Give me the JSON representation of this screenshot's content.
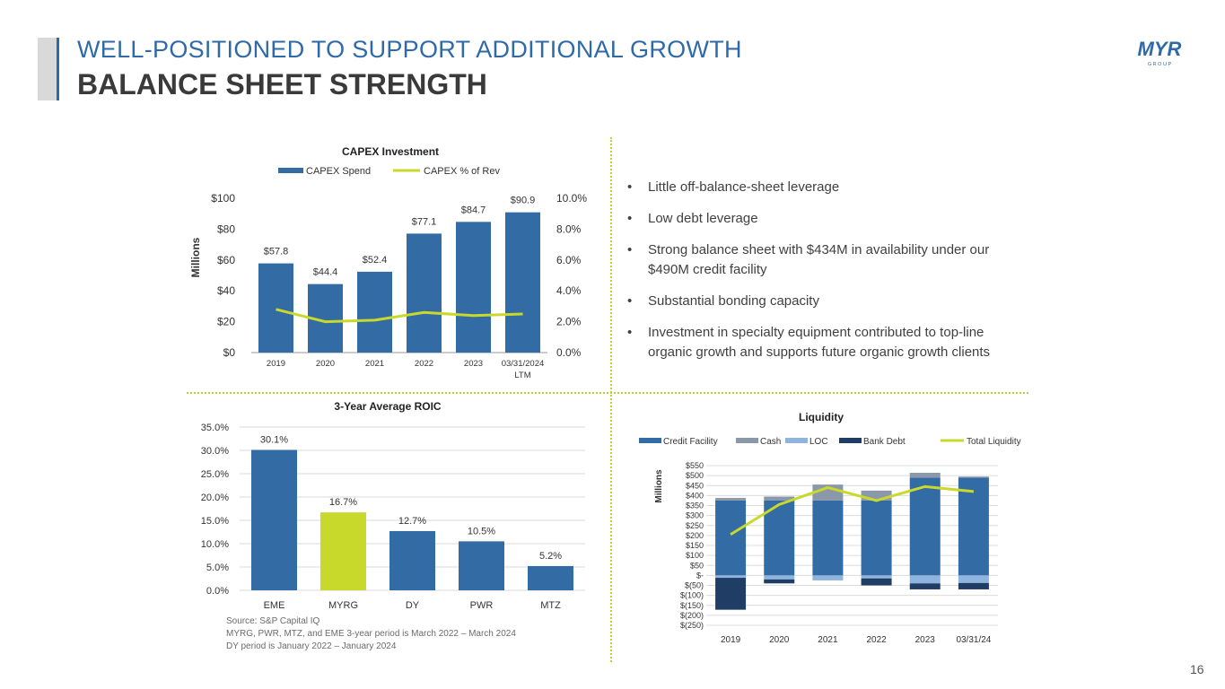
{
  "header": {
    "title": "WELL-POSITIONED TO SUPPORT ADDITIONAL GROWTH",
    "subtitle": "BALANCE SHEET STRENGTH",
    "logo_text": "MYR",
    "logo_sub": "G R O U P"
  },
  "page_number": "16",
  "colors": {
    "accent_blue": "#2f6aa8",
    "bar_blue": "#336ca5",
    "lime": "#c9d92b",
    "dark_navy": "#203d66",
    "gray_blue": "#8a98aa",
    "light_blue": "#8fb4de"
  },
  "bullets": [
    "Little off-balance-sheet leverage",
    "Low debt leverage",
    "Strong balance sheet with $434M in availability under our $490M credit facility",
    "Substantial bonding capacity",
    "Investment in specialty equipment contributed to top-line organic growth and supports future organic growth clients"
  ],
  "bullet_symbol": "•",
  "source_lines": [
    "Source: S&P Capital IQ",
    "MYRG, PWR, MTZ, and EME 3-year period is March 2022 – March 2024",
    "DY period is January 2022 – January 2024"
  ],
  "chart_data": [
    {
      "id": "capex",
      "type": "bar",
      "title": "CAPEX  Investment",
      "ylabel": "Millions",
      "categories": [
        "2019",
        "2020",
        "2021",
        "2022",
        "2023",
        "03/31/2024"
      ],
      "category_sublabels": [
        "",
        "",
        "",
        "",
        "",
        "LTM"
      ],
      "series": [
        {
          "name": "CAPEX Spend",
          "kind": "bar",
          "axis": "left",
          "values": [
            57.8,
            44.4,
            52.4,
            77.1,
            84.7,
            90.9
          ],
          "labels": [
            "$57.8",
            "$44.4",
            "$52.4",
            "$77.1",
            "$84.7",
            "$90.9"
          ]
        },
        {
          "name": "CAPEX % of Rev",
          "kind": "line",
          "axis": "right",
          "values": [
            2.8,
            2.0,
            2.1,
            2.6,
            2.4,
            2.5
          ]
        }
      ],
      "ylim": [
        0,
        100
      ],
      "yticks": [
        0,
        20,
        40,
        60,
        80,
        100
      ],
      "ytick_labels": [
        "$0",
        "$20",
        "$40",
        "$60",
        "$80",
        "$100"
      ],
      "y2lim": [
        0,
        10
      ],
      "y2ticks": [
        0,
        2,
        4,
        6,
        8,
        10
      ],
      "y2tick_labels": [
        "0.0%",
        "2.0%",
        "4.0%",
        "6.0%",
        "8.0%",
        "10.0%"
      ],
      "legend": "top",
      "grid": false
    },
    {
      "id": "roic",
      "type": "bar",
      "title": "3-Year Average ROIC",
      "categories": [
        "EME",
        "MYRG",
        "DY",
        "PWR",
        "MTZ"
      ],
      "values": [
        30.1,
        16.7,
        12.7,
        10.5,
        5.2
      ],
      "labels": [
        "30.1%",
        "16.7%",
        "12.7%",
        "10.5%",
        "5.2%"
      ],
      "highlight_index": 1,
      "ylim": [
        0,
        35
      ],
      "yticks": [
        0,
        5,
        10,
        15,
        20,
        25,
        30,
        35
      ],
      "ytick_labels": [
        "0.0%",
        "5.0%",
        "10.0%",
        "15.0%",
        "20.0%",
        "25.0%",
        "30.0%",
        "35.0%"
      ],
      "grid": true
    },
    {
      "id": "liquidity",
      "type": "bar",
      "stacked": true,
      "title": "Liquidity",
      "ylabel": "Millions",
      "categories": [
        "2019",
        "2020",
        "2021",
        "2022",
        "2023",
        "03/31/24"
      ],
      "series": [
        {
          "name": "Credit Facility",
          "kind": "bar",
          "values": [
            375,
            375,
            375,
            375,
            490,
            490
          ]
        },
        {
          "name": "Cash",
          "kind": "bar",
          "values": [
            13,
            20,
            80,
            50,
            24,
            5
          ]
        },
        {
          "name": "LOC",
          "kind": "bar",
          "values": [
            -12,
            -20,
            -25,
            -15,
            -40,
            -38
          ]
        },
        {
          "name": "Bank Debt",
          "kind": "bar",
          "values": [
            -160,
            -20,
            0,
            -35,
            -30,
            -32
          ]
        },
        {
          "name": "Total Liquidity",
          "kind": "line",
          "values": [
            205,
            355,
            440,
            375,
            445,
            420
          ]
        }
      ],
      "ylim": [
        -250,
        550
      ],
      "yticks": [
        -250,
        -200,
        -150,
        -100,
        -50,
        0,
        50,
        100,
        150,
        200,
        250,
        300,
        350,
        400,
        450,
        500,
        550
      ],
      "ytick_labels": [
        "$(250)",
        "$(200)",
        "$(150)",
        "$(100)",
        "$(50)",
        "$-",
        "$50",
        "$100",
        "$150",
        "$200",
        "$250",
        "$300",
        "$350",
        "$400",
        "$450",
        "$500",
        "$550"
      ],
      "legend": "top",
      "grid": true
    }
  ]
}
